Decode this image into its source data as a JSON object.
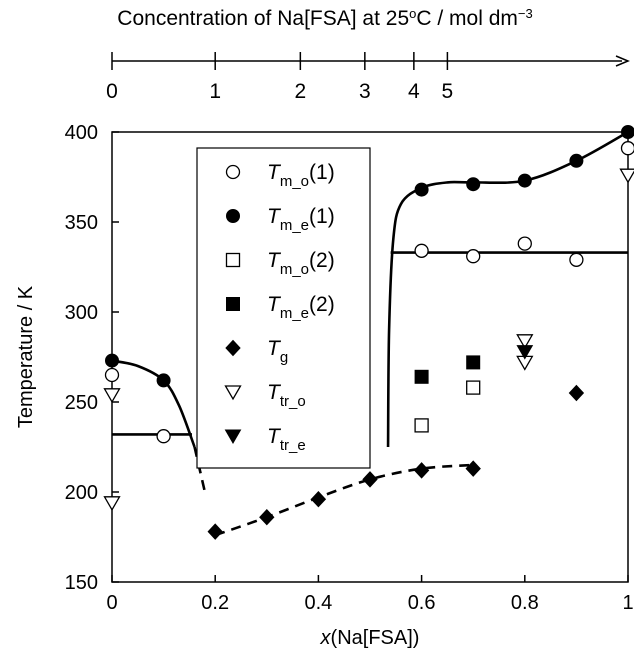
{
  "chart_data": {
    "type": "scatter",
    "title": "",
    "xlabel": "x(Na[FSA])",
    "xlabel_parts": {
      "italic": "x",
      "rest": "(Na[FSA])"
    },
    "ylabel": "Temperature / K",
    "xlim": [
      0,
      1
    ],
    "ylim": [
      150,
      400
    ],
    "xticks": [
      0,
      0.2,
      0.4,
      0.6,
      0.8,
      1
    ],
    "xtick_labels": [
      "0",
      "0.2",
      "0.4",
      "0.6",
      "0.8",
      "1"
    ],
    "yticks": [
      150,
      200,
      250,
      300,
      350,
      400
    ],
    "ytick_labels": [
      "150",
      "200",
      "250",
      "300",
      "350",
      "400"
    ],
    "grid": false,
    "legend_position": "top-left, inside plot",
    "top_axis": {
      "label": "Concentration of Na[FSA] at 25oC / mol dm−3",
      "label_parts": {
        "a": "Concentration of Na[FSA] at 25",
        "sup1": "o",
        "b": "C / mol dm",
        "sup2": "−3"
      },
      "ticks": [
        {
          "label": "0",
          "x": 0.0
        },
        {
          "label": "1",
          "x": 0.2
        },
        {
          "label": "2",
          "x": 0.365
        },
        {
          "label": "3",
          "x": 0.49
        },
        {
          "label": "4",
          "x": 0.585
        },
        {
          "label": "5",
          "x": 0.65
        }
      ]
    },
    "series": [
      {
        "name": "Tm_o(1)",
        "label_main": "T",
        "label_sub": "m_o",
        "label_suffix": "(1)",
        "marker": "circle-open",
        "points": [
          [
            0,
            265
          ],
          [
            0.1,
            231
          ],
          [
            0.6,
            334
          ],
          [
            0.7,
            331
          ],
          [
            0.8,
            338
          ],
          [
            0.9,
            329
          ],
          [
            1.0,
            391
          ]
        ]
      },
      {
        "name": "Tm_e(1)",
        "label_main": "T",
        "label_sub": "m_e",
        "label_suffix": "(1)",
        "marker": "circle-filled",
        "points": [
          [
            0,
            273
          ],
          [
            0.1,
            262
          ],
          [
            0.6,
            368
          ],
          [
            0.7,
            371
          ],
          [
            0.8,
            373
          ],
          [
            0.9,
            384
          ],
          [
            1.0,
            400
          ]
        ]
      },
      {
        "name": "Tm_o(2)",
        "label_main": "T",
        "label_sub": "m_o",
        "label_suffix": "(2)",
        "marker": "square-open",
        "points": [
          [
            0.6,
            237
          ],
          [
            0.7,
            258
          ]
        ]
      },
      {
        "name": "Tm_e(2)",
        "label_main": "T",
        "label_sub": "m_e",
        "label_suffix": "(2)",
        "marker": "square-filled",
        "points": [
          [
            0.6,
            264
          ],
          [
            0.7,
            272
          ]
        ]
      },
      {
        "name": "Tg",
        "label_main": "T",
        "label_sub": "g",
        "label_suffix": "",
        "marker": "diamond-filled",
        "points": [
          [
            0.2,
            178
          ],
          [
            0.3,
            186
          ],
          [
            0.4,
            196
          ],
          [
            0.5,
            207
          ],
          [
            0.6,
            212
          ],
          [
            0.7,
            213
          ],
          [
            0.9,
            255
          ]
        ]
      },
      {
        "name": "Ttr_o",
        "label_main": "T",
        "label_sub": "tr_o",
        "label_suffix": "",
        "marker": "triangle-down-open",
        "points": [
          [
            0,
            254
          ],
          [
            0,
            194
          ],
          [
            0.8,
            284
          ],
          [
            0.8,
            272
          ],
          [
            1.0,
            376
          ]
        ]
      },
      {
        "name": "Ttr_e",
        "label_main": "T",
        "label_sub": "tr_e",
        "label_suffix": "",
        "marker": "triangle-down-filled",
        "points": [
          [
            0.8,
            278
          ]
        ]
      }
    ],
    "curves": [
      {
        "name": "liquidus-left",
        "style": "solid",
        "points": [
          [
            0,
            273
          ],
          [
            0.05,
            270
          ],
          [
            0.1,
            262
          ],
          [
            0.13,
            248
          ],
          [
            0.16,
            225
          ]
        ]
      },
      {
        "name": "liquidus-left-extension",
        "style": "dashed",
        "points": [
          [
            0.16,
            225
          ],
          [
            0.18,
            200
          ]
        ]
      },
      {
        "name": "eutectic-left",
        "style": "solid",
        "points": [
          [
            0,
            232
          ],
          [
            0.155,
            232
          ]
        ]
      },
      {
        "name": "glass-transition",
        "style": "dashed",
        "points": [
          [
            0.2,
            176
          ],
          [
            0.3,
            186
          ],
          [
            0.4,
            197
          ],
          [
            0.5,
            207
          ],
          [
            0.6,
            213
          ],
          [
            0.7,
            215
          ]
        ]
      },
      {
        "name": "liquidus-right",
        "style": "solid",
        "points": [
          [
            0.535,
            225
          ],
          [
            0.537,
            290
          ],
          [
            0.545,
            340
          ],
          [
            0.56,
            360
          ],
          [
            0.6,
            369
          ],
          [
            0.65,
            372
          ],
          [
            0.7,
            372
          ],
          [
            0.8,
            373
          ],
          [
            0.9,
            384
          ],
          [
            1.0,
            400
          ]
        ]
      },
      {
        "name": "eutectic-right",
        "style": "solid",
        "points": [
          [
            0.54,
            333
          ],
          [
            1.0,
            333
          ]
        ]
      }
    ]
  }
}
